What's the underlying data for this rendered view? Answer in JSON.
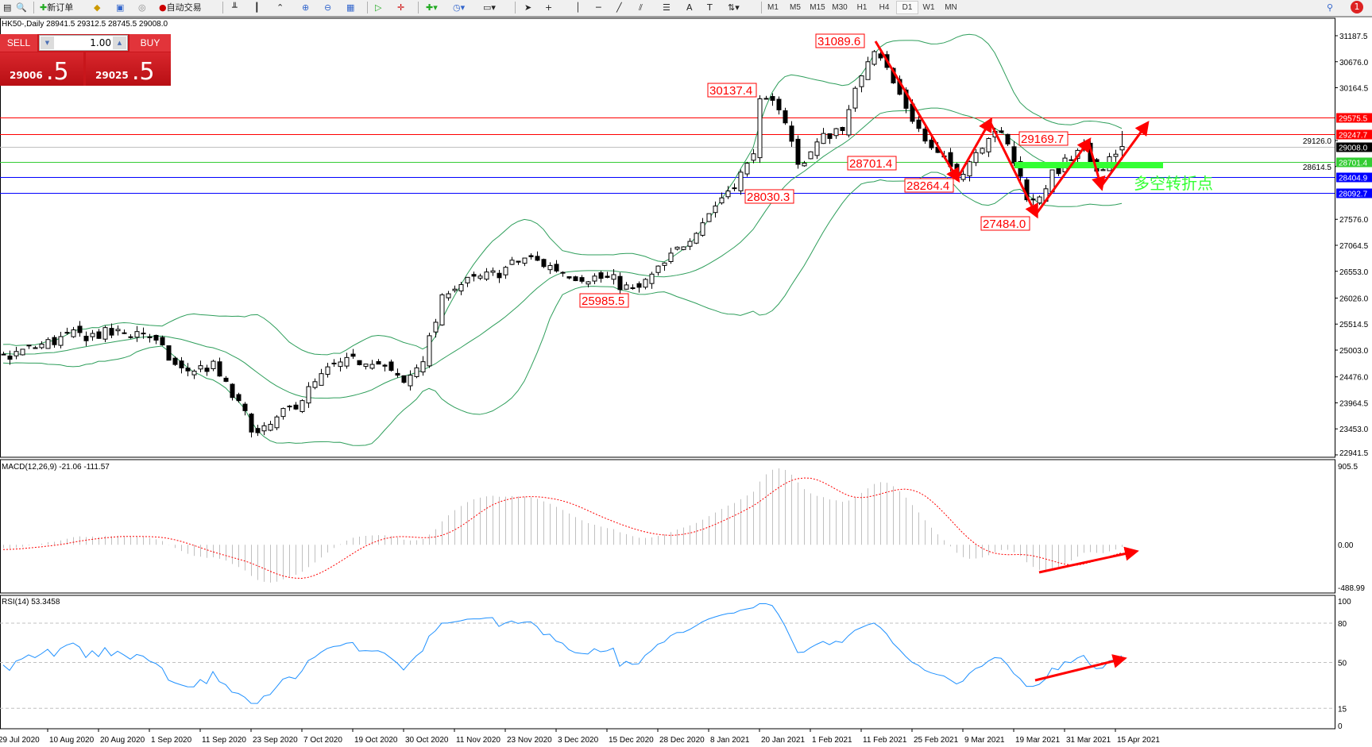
{
  "toolbar": {
    "new_order": "新订单",
    "auto_trading": "自动交易",
    "timeframes": [
      "M1",
      "M5",
      "M15",
      "M30",
      "H1",
      "H4",
      "D1",
      "W1",
      "MN"
    ],
    "active_timeframe": "D1",
    "notification_count": "1"
  },
  "chart_header": "HK50-,Daily  28941.5 29312.5 28745.5 29008.0",
  "trade_panel": {
    "sell_label": "SELL",
    "buy_label": "BUY",
    "volume": "1.00",
    "sell_price_main": "29006",
    "sell_price_frac": ".5",
    "buy_price_main": "29025",
    "buy_price_frac": ".5"
  },
  "chart_data": {
    "type": "candlestick",
    "symbol": "HK50-",
    "timeframe": "Daily",
    "last_ohlc": {
      "open": 28941.5,
      "high": 29312.5,
      "low": 28745.5,
      "close": 29008.0
    },
    "price_axis_ticks": [
      "31187.5",
      "30676.0",
      "30164.5",
      "29126.0",
      "28614.5",
      "27576.0",
      "27064.5",
      "26553.0",
      "26026.0",
      "25514.5",
      "25003.0",
      "24476.0",
      "23964.5",
      "23453.0",
      "22941.5"
    ],
    "ylim": [
      22941.5,
      31187.5
    ],
    "x_ticks": [
      "29 Jul 2020",
      "10 Aug 2020",
      "20 Aug 2020",
      "1 Sep 2020",
      "11 Sep 2020",
      "23 Sep 2020",
      "7 Oct 2020",
      "19 Oct 2020",
      "30 Oct 2020",
      "11 Nov 2020",
      "23 Nov 2020",
      "3 Dec 2020",
      "15 Dec 2020",
      "28 Dec 2020",
      "8 Jan 2021",
      "20 Jan 2021",
      "1 Feb 2021",
      "11 Feb 2021",
      "25 Feb 2021",
      "9 Mar 2021",
      "19 Mar 2021",
      "31 Mar 2021",
      "15 Apr 2021"
    ],
    "close_path": [
      {
        "date": "2020-07-30",
        "close": 24846
      },
      {
        "date": "2020-08-14",
        "close": 25276
      },
      {
        "date": "2020-08-31",
        "close": 25362
      },
      {
        "date": "2020-09-07",
        "close": 24589
      },
      {
        "date": "2020-09-14",
        "close": 24675
      },
      {
        "date": "2020-09-25",
        "close": 23300
      },
      {
        "date": "2020-10-07",
        "close": 24074
      },
      {
        "date": "2020-10-14",
        "close": 24675
      },
      {
        "date": "2020-10-23",
        "close": 24846
      },
      {
        "date": "2020-10-30",
        "close": 24330
      },
      {
        "date": "2020-11-04",
        "close": 24932
      },
      {
        "date": "2020-11-09",
        "close": 26220
      },
      {
        "date": "2020-11-20",
        "close": 26480
      },
      {
        "date": "2020-11-27",
        "close": 26822
      },
      {
        "date": "2020-12-07",
        "close": 26480
      },
      {
        "date": "2020-12-16",
        "close": 26392
      },
      {
        "date": "2020-12-22",
        "close": 26136
      },
      {
        "date": "2020-12-30",
        "close": 26736
      },
      {
        "date": "2021-01-07",
        "close": 27595
      },
      {
        "date": "2021-01-18",
        "close": 28712
      },
      {
        "date": "2021-01-20",
        "close": 29829
      },
      {
        "date": "2021-01-25",
        "close": 29829
      },
      {
        "date": "2021-01-29",
        "close": 28626
      },
      {
        "date": "2021-02-03",
        "close": 29142
      },
      {
        "date": "2021-02-08",
        "close": 29486
      },
      {
        "date": "2021-02-12",
        "close": 30688
      },
      {
        "date": "2021-02-15",
        "close": 31032
      },
      {
        "date": "2021-02-19",
        "close": 30344
      },
      {
        "date": "2021-02-25",
        "close": 29571
      },
      {
        "date": "2021-03-01",
        "close": 28970
      },
      {
        "date": "2021-03-08",
        "close": 28454
      },
      {
        "date": "2021-03-15",
        "close": 29399
      },
      {
        "date": "2021-03-18",
        "close": 28970
      },
      {
        "date": "2021-03-23",
        "close": 27853
      },
      {
        "date": "2021-03-29",
        "close": 28540
      },
      {
        "date": "2021-04-06",
        "close": 28970
      },
      {
        "date": "2021-04-08",
        "close": 28454
      },
      {
        "date": "2021-04-16",
        "close": 29008
      }
    ],
    "indicators": {
      "bollinger": {
        "color": "#2e9e5b"
      },
      "macd": {
        "label": "MACD(12,26,9) -21.06 -111.57",
        "ticks": [
          "905.5",
          "0.00",
          "-488.99"
        ],
        "ylim": [
          -488.99,
          905.5
        ],
        "signal_color": "#ff0000",
        "hist_color": "#c0c0c0"
      },
      "rsi": {
        "label": "RSI(14) 53.3458",
        "ticks": [
          "100",
          "80",
          "50",
          "15",
          "0"
        ],
        "levels": [
          80,
          50,
          15
        ],
        "color": "#1e90ff"
      }
    },
    "price_lines": [
      {
        "value": "29575.5",
        "color": "#ff0000"
      },
      {
        "value": "29247.7",
        "color": "#ff0000"
      },
      {
        "value": "29008.0",
        "color": "#000000",
        "line_color": "#c0c0c0"
      },
      {
        "value": "28701.4",
        "color": "#33cc33"
      },
      {
        "value": "28404.9",
        "color": "#0000ff"
      },
      {
        "value": "28092.7",
        "color": "#0000ff"
      }
    ],
    "annotations": {
      "price_labels": [
        "31089.6",
        "30137.4",
        "28701.4",
        "29169.7",
        "28264.4",
        "28030.3",
        "27484.0",
        "25985.5"
      ],
      "pivot_text": "多空转折点",
      "pivot_color": "#33ff33",
      "arrow_color": "#ff0000"
    }
  }
}
